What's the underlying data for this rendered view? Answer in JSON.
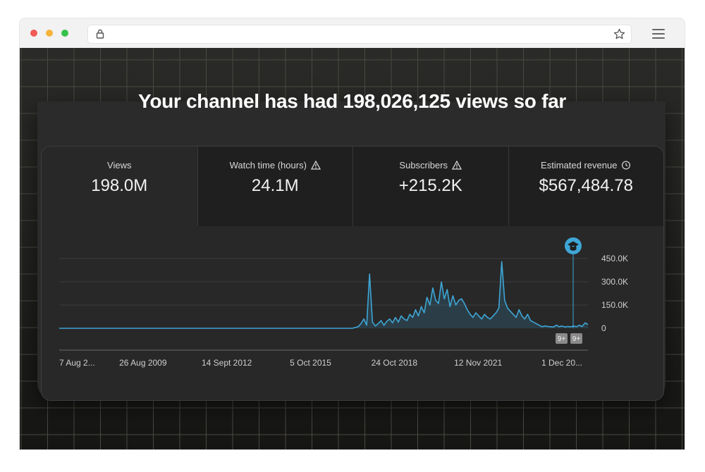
{
  "browser": {
    "url": ""
  },
  "page": {
    "headline": "Your channel has had 198,026,125 views so far"
  },
  "metrics": [
    {
      "label": "Views",
      "value": "198.0M",
      "icon": ""
    },
    {
      "label": "Watch time (hours)",
      "value": "24.1M",
      "icon": "warning-icon"
    },
    {
      "label": "Subscribers",
      "value": "+215.2K",
      "icon": "warning-icon"
    },
    {
      "label": "Estimated revenue",
      "value": "$567,484.78",
      "icon": "clock-icon"
    }
  ],
  "chart_data": {
    "type": "line",
    "y_tick_labels": [
      "450.0K",
      "300.0K",
      "150.0K",
      "0"
    ],
    "y_ticks": [
      450000,
      300000,
      150000,
      0
    ],
    "x_tick_labels": [
      "7 Aug 2...",
      "26 Aug 2009",
      "14 Sept 2012",
      "5 Oct 2015",
      "24 Oct 2018",
      "12 Nov 2021",
      "1 Dec 20..."
    ],
    "ylim": [
      0,
      450000
    ],
    "line_color": "#3ea6d6",
    "series": [
      {
        "values": [
          0,
          0,
          0,
          0,
          0,
          0,
          0,
          0,
          0,
          0,
          0,
          0,
          0,
          0,
          0,
          0,
          0,
          0,
          0,
          0,
          0,
          0,
          0,
          0,
          0,
          0,
          0,
          0,
          0,
          0,
          0,
          0,
          0,
          0,
          0,
          0,
          0,
          0,
          0,
          0,
          0,
          0,
          0,
          0,
          0,
          0,
          0,
          0,
          0,
          0,
          0,
          0,
          0,
          0,
          0,
          0,
          0,
          0,
          0,
          0,
          0,
          0,
          0,
          0,
          0,
          0,
          0,
          0,
          0,
          0,
          0,
          0,
          0,
          0,
          0,
          0,
          0,
          0,
          0,
          0,
          0,
          0,
          0,
          0,
          0,
          0,
          0,
          0,
          0,
          0,
          0,
          0,
          0,
          0,
          0,
          0,
          0,
          0,
          0,
          0,
          0,
          0,
          0,
          5000,
          10000,
          30000,
          60000,
          20000,
          350000,
          40000,
          15000,
          30000,
          50000,
          20000,
          45000,
          60000,
          35000,
          70000,
          40000,
          80000,
          60000,
          50000,
          90000,
          70000,
          120000,
          80000,
          140000,
          100000,
          200000,
          150000,
          260000,
          180000,
          160000,
          300000,
          190000,
          250000,
          140000,
          210000,
          150000,
          180000,
          190000,
          160000,
          120000,
          90000,
          70000,
          100000,
          80000,
          60000,
          90000,
          70000,
          60000,
          80000,
          100000,
          130000,
          430000,
          180000,
          130000,
          110000,
          90000,
          70000,
          120000,
          80000,
          60000,
          90000,
          50000,
          40000,
          30000,
          20000,
          10000,
          15000,
          12000,
          10000,
          8000,
          20000,
          10000,
          15000,
          8000,
          12000,
          9000,
          15000,
          10000,
          20000,
          12000,
          35000,
          25000
        ]
      }
    ],
    "markers": [
      {
        "label": "9+"
      },
      {
        "label": "9+"
      }
    ],
    "event_icon": "graduation-cap-icon"
  }
}
